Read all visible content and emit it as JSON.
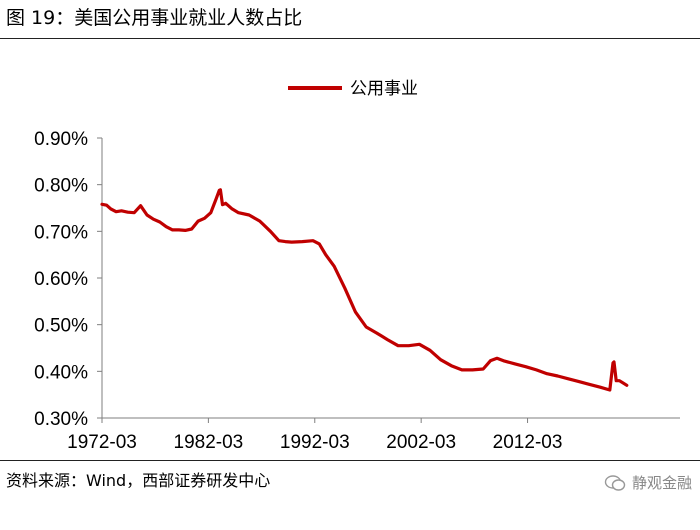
{
  "header": {
    "title": "图 19：美国公用事业就业人数占比"
  },
  "footer": {
    "source": "资料来源：Wind，西部证券研发中心",
    "watermark": "静观金融"
  },
  "colors": {
    "series": "#C00000",
    "axis": "#7f7f7f"
  },
  "chart_data": {
    "type": "line",
    "title": "",
    "xlabel": "",
    "ylabel": "",
    "ylim": [
      0.003,
      0.009
    ],
    "xlim": [
      1972.17,
      2026.5
    ],
    "legend": {
      "placement": "top-center"
    },
    "grid": false,
    "y_ticks": [
      0.003,
      0.004,
      0.005,
      0.006,
      0.007,
      0.008,
      0.009
    ],
    "y_tick_labels": [
      "0.30%",
      "0.40%",
      "0.50%",
      "0.60%",
      "0.70%",
      "0.80%",
      "0.90%"
    ],
    "x_ticks": [
      1972.17,
      1982.17,
      1992.17,
      2002.17,
      2012.17
    ],
    "x_tick_labels": [
      "1972-03",
      "1982-03",
      "1992-03",
      "2002-03",
      "2012-03"
    ],
    "series": [
      {
        "name": "公用事业",
        "x": [
          1972.17,
          1972.6,
          1973.0,
          1973.5,
          1974.0,
          1974.6,
          1975.2,
          1975.8,
          1976.4,
          1977.0,
          1977.6,
          1978.2,
          1978.8,
          1979.4,
          1980.0,
          1980.6,
          1981.2,
          1981.8,
          1982.4,
          1982.9,
          1983.2,
          1983.3,
          1983.5,
          1983.8,
          1984.4,
          1985.0,
          1986.0,
          1987.0,
          1988.0,
          1988.8,
          1989.4,
          1990.0,
          1991.0,
          1992.0,
          1992.6,
          1993.2,
          1994.0,
          1995.0,
          1996.0,
          1997.0,
          1998.0,
          1999.0,
          2000.0,
          2001.0,
          2002.0,
          2003.0,
          2004.0,
          2005.0,
          2006.0,
          2007.0,
          2008.0,
          2008.7,
          2009.3,
          2010.0,
          2011.0,
          2012.0,
          2013.0,
          2014.0,
          2015.0,
          2016.0,
          2017.0,
          2018.0,
          2019.0,
          2019.9,
          2020.2,
          2020.3,
          2020.5,
          2020.8,
          2021.5
        ],
        "values": [
          0.00758,
          0.00756,
          0.00748,
          0.00742,
          0.00744,
          0.00741,
          0.0074,
          0.00755,
          0.00735,
          0.00726,
          0.0072,
          0.0071,
          0.00703,
          0.00703,
          0.00702,
          0.00705,
          0.00722,
          0.00728,
          0.0074,
          0.0077,
          0.00788,
          0.00789,
          0.00757,
          0.0076,
          0.00748,
          0.0074,
          0.00735,
          0.00722,
          0.007,
          0.0068,
          0.00678,
          0.00677,
          0.00678,
          0.0068,
          0.00673,
          0.0065,
          0.00625,
          0.00578,
          0.00527,
          0.00495,
          0.00482,
          0.00468,
          0.00455,
          0.00455,
          0.00458,
          0.00445,
          0.00425,
          0.00412,
          0.00403,
          0.00403,
          0.00405,
          0.00423,
          0.00428,
          0.00422,
          0.00416,
          0.0041,
          0.00403,
          0.00395,
          0.0039,
          0.00384,
          0.00378,
          0.00372,
          0.00366,
          0.0036,
          0.00418,
          0.0042,
          0.0038,
          0.0038,
          0.0037
        ]
      }
    ]
  }
}
